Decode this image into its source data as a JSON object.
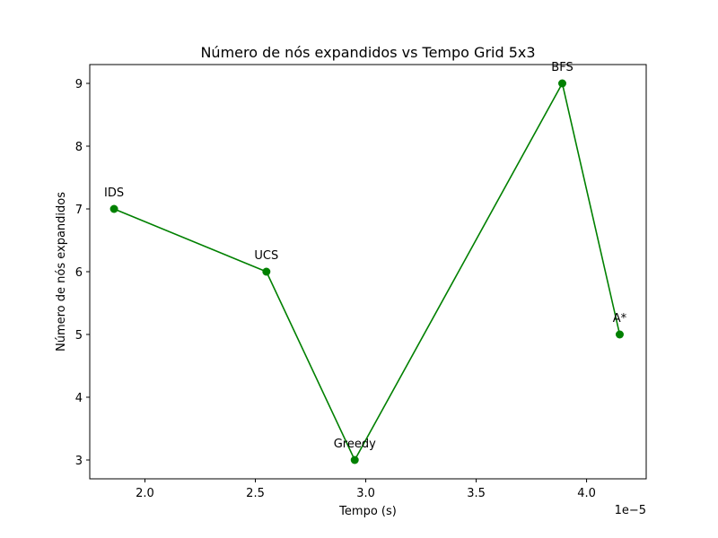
{
  "chart_data": {
    "type": "line",
    "title": "Número de nós expandidos vs Tempo Grid 5x3",
    "xlabel": "Tempo (s)",
    "ylabel": "Número de nós expandidos",
    "x_offset_label": "1e−5",
    "xlim": [
      1.75,
      4.27
    ],
    "ylim": [
      2.7,
      9.3
    ],
    "x_ticks": [
      2.0,
      2.5,
      3.0,
      3.5,
      4.0
    ],
    "x_tick_labels": [
      "2.0",
      "2.5",
      "3.0",
      "3.5",
      "4.0"
    ],
    "y_ticks": [
      3,
      4,
      5,
      6,
      7,
      8,
      9
    ],
    "y_tick_labels": [
      "3",
      "4",
      "5",
      "6",
      "7",
      "8",
      "9"
    ],
    "grid": false,
    "color": "#008000",
    "points": [
      {
        "label": "IDS",
        "x": 1.86,
        "y": 7
      },
      {
        "label": "UCS",
        "x": 2.55,
        "y": 6
      },
      {
        "label": "Greedy",
        "x": 2.95,
        "y": 3
      },
      {
        "label": "BFS",
        "x": 3.89,
        "y": 9
      },
      {
        "label": "A*",
        "x": 4.15,
        "y": 5
      }
    ]
  }
}
